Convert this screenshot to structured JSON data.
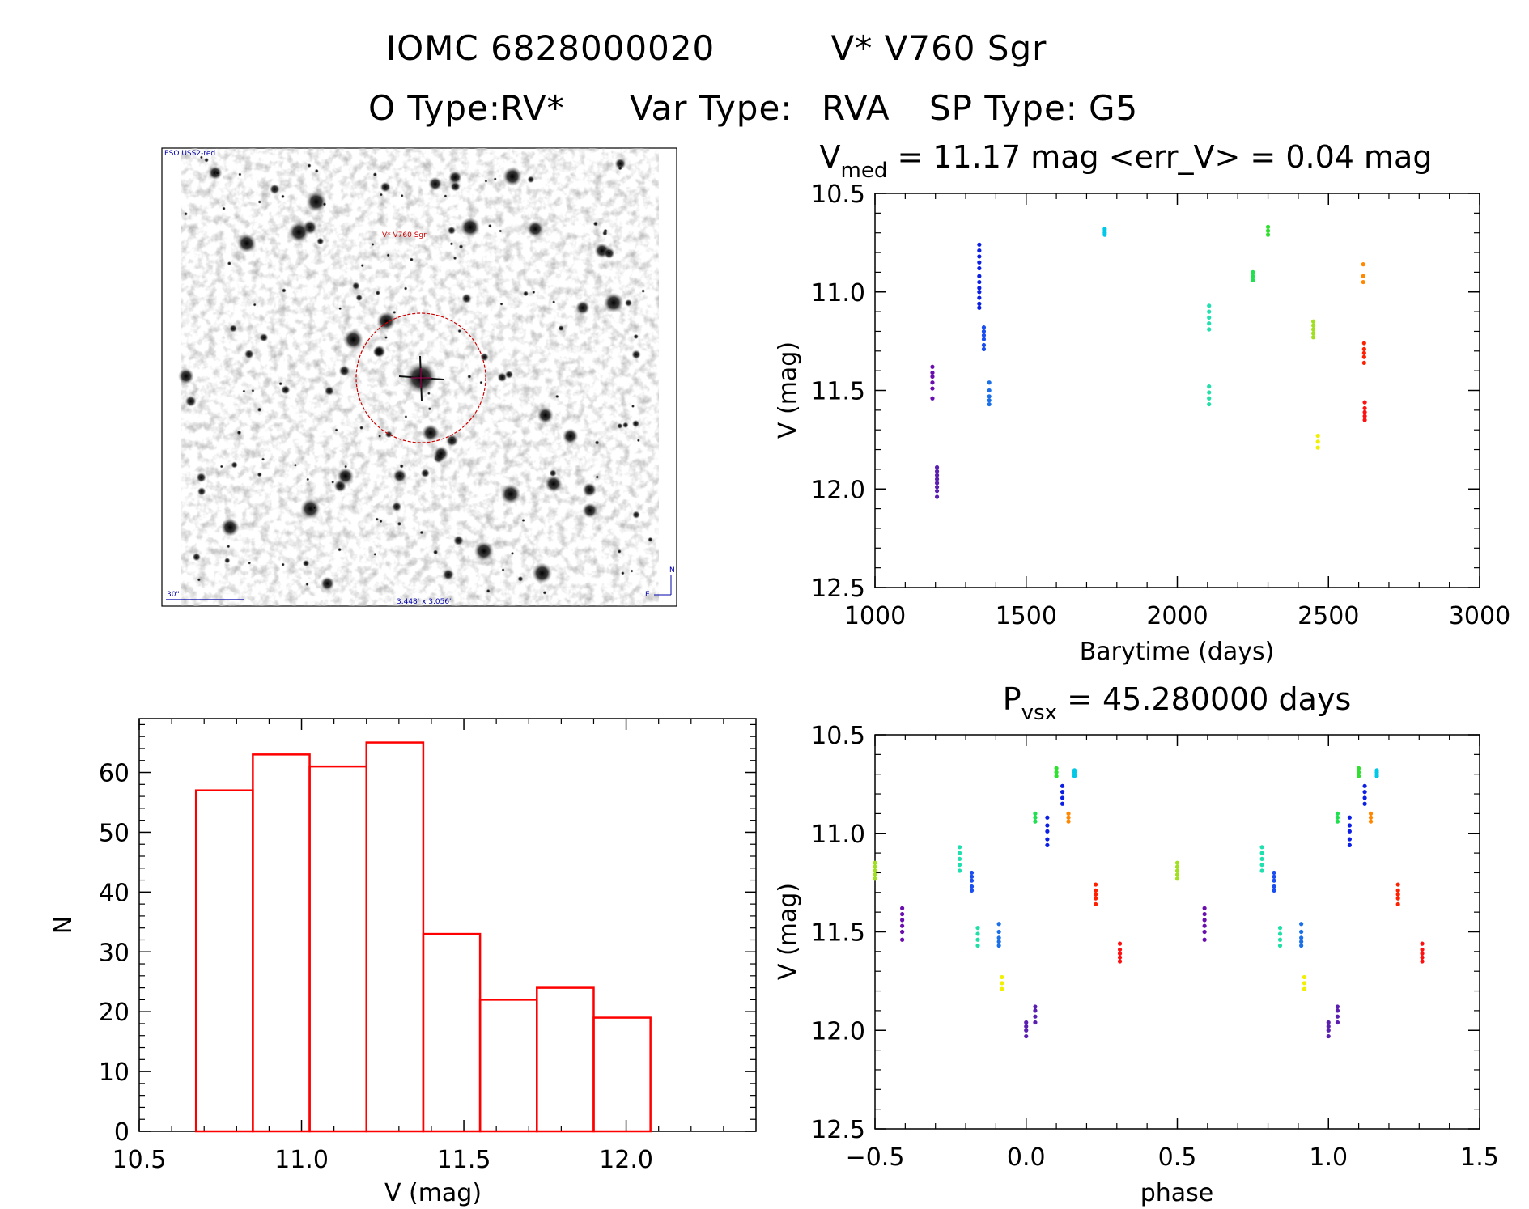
{
  "header": {
    "object_id": "IOMC 6828000020",
    "simbad_name": "V* V760 Sgr",
    "o_type_label": "O Type:",
    "o_type": "RV*",
    "var_type_label": "Var Type:",
    "var_type": "RVA",
    "sp_type_label": "SP Type:",
    "sp_type": "G5"
  },
  "finder_image": {
    "survey_label": "ESO USS2-red",
    "target_label": "V* V760 Sgr",
    "scale_label": "30\"",
    "fov_label": "3.448' x 3.056'",
    "north_label": "N",
    "east_label": "E"
  },
  "colors": {
    "hist_bar": "#ff0000",
    "target_circle": "#cc0000",
    "label_blue": "#0000aa",
    "label_red": "#cc0000"
  },
  "chart_data": [
    {
      "id": "lightcurve",
      "type": "scatter",
      "title_prefix": "V",
      "title_subscript": "med",
      "title_rest": " = 11.17 mag <err_V> = 0.04 mag",
      "xlabel": "Barytime (days)",
      "ylabel": "V (mag)",
      "xlim": [
        1000,
        3000
      ],
      "ylim": [
        12.5,
        10.5
      ],
      "y_inverted": true,
      "xticks": [
        1000,
        1500,
        2000,
        2500,
        3000
      ],
      "xtick_labels": [
        "1000",
        "1500",
        "2000",
        "2500",
        "3000"
      ],
      "yticks": [
        10.5,
        11.0,
        11.5,
        12.0,
        12.5
      ],
      "ytick_labels": [
        "10.5",
        "11.0",
        "11.5",
        "12.0",
        "12.5"
      ],
      "groups": [
        {
          "name": "seg1",
          "color": "#6a0dad",
          "x": 1190,
          "y": [
            11.38,
            11.41,
            11.43,
            11.46,
            11.49,
            11.54
          ]
        },
        {
          "name": "seg2",
          "color": "#5a1eb0",
          "x": 1205,
          "y": [
            11.89,
            11.91,
            11.93,
            11.95,
            11.97,
            11.99,
            12.01,
            12.04
          ]
        },
        {
          "name": "seg3",
          "color": "#0a1ee6",
          "x": 1345,
          "y": [
            10.76,
            10.79,
            10.82,
            10.85,
            10.88,
            10.92,
            10.95,
            10.98,
            11.0,
            11.03,
            11.06,
            11.08
          ]
        },
        {
          "name": "seg4",
          "color": "#1a4ef0",
          "x": 1360,
          "y": [
            11.18,
            11.2,
            11.22,
            11.24,
            11.27,
            11.29
          ]
        },
        {
          "name": "seg5",
          "color": "#1a70e8",
          "x": 1378,
          "y": [
            11.46,
            11.5,
            11.53,
            11.55,
            11.57
          ]
        },
        {
          "name": "seg6",
          "color": "#00c8e6",
          "x": 1760,
          "y": [
            10.68,
            10.69,
            10.7,
            10.71
          ]
        },
        {
          "name": "seg7",
          "color": "#20e0b0",
          "x": 2105,
          "y": [
            11.07,
            11.1,
            11.13,
            11.16,
            11.19
          ]
        },
        {
          "name": "seg8",
          "color": "#20e0a8",
          "x": 2105,
          "y": [
            11.48,
            11.51,
            11.54,
            11.57
          ]
        },
        {
          "name": "seg9",
          "color": "#20e050",
          "x": 2250,
          "y": [
            10.9,
            10.92,
            10.94
          ]
        },
        {
          "name": "seg10",
          "color": "#30e030",
          "x": 2300,
          "y": [
            10.67,
            10.69,
            10.71
          ]
        },
        {
          "name": "seg11",
          "color": "#a0e020",
          "x": 2450,
          "y": [
            11.15,
            11.17,
            11.19,
            11.21,
            11.23
          ]
        },
        {
          "name": "seg12",
          "color": "#f0f000",
          "x": 2465,
          "y": [
            11.73,
            11.76,
            11.79
          ]
        },
        {
          "name": "seg13",
          "color": "#ff8800",
          "x": 2615,
          "y": [
            10.86,
            10.92,
            10.95
          ]
        },
        {
          "name": "seg14",
          "color": "#ff2000",
          "x": 2618,
          "y": [
            11.26,
            11.29,
            11.31,
            11.33,
            11.36
          ]
        },
        {
          "name": "seg15",
          "color": "#ff1010",
          "x": 2620,
          "y": [
            11.56,
            11.59,
            11.61,
            11.63,
            11.65
          ]
        }
      ]
    },
    {
      "id": "histogram",
      "type": "bar",
      "title": "",
      "xlabel": "V (mag)",
      "ylabel": "N",
      "xlim": [
        10.5,
        12.4
      ],
      "ylim": [
        0,
        69
      ],
      "xticks": [
        10.5,
        11.0,
        11.5,
        12.0
      ],
      "xtick_labels": [
        "10.5",
        "11.0",
        "11.5",
        "12.0"
      ],
      "yticks": [
        0,
        10,
        20,
        30,
        40,
        50,
        60
      ],
      "ytick_labels": [
        "0",
        "10",
        "20",
        "30",
        "40",
        "50",
        "60"
      ],
      "bin_edges": [
        10.675,
        10.85,
        11.025,
        11.2,
        11.375,
        11.55,
        11.725,
        11.9,
        12.075
      ],
      "values": [
        57,
        63,
        61,
        65,
        33,
        22,
        24,
        19
      ]
    },
    {
      "id": "phased",
      "type": "scatter",
      "title_prefix": "P",
      "title_subscript": "vsx",
      "title_rest": " = 45.280000 days",
      "xlabel": "phase",
      "ylabel": "V (mag)",
      "xlim": [
        -0.5,
        1.5
      ],
      "ylim": [
        12.5,
        10.5
      ],
      "y_inverted": true,
      "xticks": [
        -0.5,
        0.0,
        0.5,
        1.0,
        1.5
      ],
      "xtick_labels": [
        "−0.5",
        "0.0",
        "0.5",
        "1.0",
        "1.5"
      ],
      "yticks": [
        10.5,
        11.0,
        11.5,
        12.0,
        12.5
      ],
      "ytick_labels": [
        "10.5",
        "11.0",
        "11.5",
        "12.0",
        "12.5"
      ],
      "groups": [
        {
          "name": "p1",
          "color": "#6a0dad",
          "x": -0.41,
          "y": [
            11.38,
            11.41,
            11.44,
            11.47,
            11.5,
            11.54
          ]
        },
        {
          "name": "p2",
          "color": "#5a1eb0",
          "x": 0.0,
          "y": [
            11.96,
            11.98,
            12.0,
            12.03
          ]
        },
        {
          "name": "p3",
          "color": "#5a1eb0",
          "x": 0.03,
          "y": [
            11.88,
            11.9,
            11.93,
            11.96
          ]
        },
        {
          "name": "p4",
          "color": "#0a1ee6",
          "x": 0.07,
          "y": [
            10.92,
            10.96,
            10.99,
            11.03,
            11.06
          ]
        },
        {
          "name": "p5",
          "color": "#0a1ee6",
          "x": 0.12,
          "y": [
            10.76,
            10.79,
            10.82,
            10.85
          ]
        },
        {
          "name": "p6",
          "color": "#1a4ef0",
          "x": -0.18,
          "y": [
            11.2,
            11.22,
            11.24,
            11.27,
            11.29
          ]
        },
        {
          "name": "p7",
          "color": "#1a70e8",
          "x": -0.09,
          "y": [
            11.46,
            11.5,
            11.53,
            11.55,
            11.57
          ]
        },
        {
          "name": "p8",
          "color": "#00c8e6",
          "x": 0.16,
          "y": [
            10.68,
            10.69,
            10.7,
            10.71
          ]
        },
        {
          "name": "p9",
          "color": "#20e0b0",
          "x": -0.22,
          "y": [
            11.07,
            11.1,
            11.13,
            11.16,
            11.19
          ]
        },
        {
          "name": "p10",
          "color": "#20e0a8",
          "x": -0.16,
          "y": [
            11.48,
            11.51,
            11.54,
            11.57
          ]
        },
        {
          "name": "p11",
          "color": "#20e050",
          "x": 0.03,
          "y": [
            10.9,
            10.92,
            10.94
          ]
        },
        {
          "name": "p12",
          "color": "#30e030",
          "x": 0.1,
          "y": [
            10.67,
            10.69,
            10.71
          ]
        },
        {
          "name": "p13",
          "color": "#a0e020",
          "x": 0.5,
          "y": [
            11.15,
            11.17,
            11.19,
            11.21,
            11.23
          ]
        },
        {
          "name": "p13b",
          "color": "#a0e020",
          "x": -0.5,
          "y": [
            11.15,
            11.17,
            11.19,
            11.21,
            11.23
          ]
        },
        {
          "name": "p14",
          "color": "#f0f000",
          "x": -0.08,
          "y": [
            11.73,
            11.76,
            11.79
          ]
        },
        {
          "name": "p15",
          "color": "#ff8800",
          "x": 0.14,
          "y": [
            10.9,
            10.92,
            10.94
          ]
        },
        {
          "name": "p16",
          "color": "#ff2000",
          "x": 0.23,
          "y": [
            11.26,
            11.29,
            11.31,
            11.33,
            11.36
          ]
        },
        {
          "name": "p17",
          "color": "#ff1010",
          "x": 0.31,
          "y": [
            11.56,
            11.59,
            11.61,
            11.63,
            11.65
          ]
        },
        {
          "name": "q1",
          "color": "#6a0dad",
          "x": 0.59,
          "y": [
            11.38,
            11.41,
            11.44,
            11.47,
            11.5,
            11.54
          ]
        },
        {
          "name": "q2",
          "color": "#5a1eb0",
          "x": 1.0,
          "y": [
            11.96,
            11.98,
            12.0,
            12.03
          ]
        },
        {
          "name": "q3",
          "color": "#5a1eb0",
          "x": 1.03,
          "y": [
            11.88,
            11.9,
            11.93,
            11.96
          ]
        },
        {
          "name": "q4",
          "color": "#0a1ee6",
          "x": 1.07,
          "y": [
            10.92,
            10.96,
            10.99,
            11.03,
            11.06
          ]
        },
        {
          "name": "q5",
          "color": "#0a1ee6",
          "x": 1.12,
          "y": [
            10.76,
            10.79,
            10.82,
            10.85
          ]
        },
        {
          "name": "q6",
          "color": "#1a4ef0",
          "x": 0.82,
          "y": [
            11.2,
            11.22,
            11.24,
            11.27,
            11.29
          ]
        },
        {
          "name": "q7",
          "color": "#1a70e8",
          "x": 0.91,
          "y": [
            11.46,
            11.5,
            11.53,
            11.55,
            11.57
          ]
        },
        {
          "name": "q8",
          "color": "#00c8e6",
          "x": 1.16,
          "y": [
            10.68,
            10.69,
            10.7,
            10.71
          ]
        },
        {
          "name": "q9",
          "color": "#20e0b0",
          "x": 0.78,
          "y": [
            11.07,
            11.1,
            11.13,
            11.16,
            11.19
          ]
        },
        {
          "name": "q10",
          "color": "#20e0a8",
          "x": 0.84,
          "y": [
            11.48,
            11.51,
            11.54,
            11.57
          ]
        },
        {
          "name": "q11",
          "color": "#20e050",
          "x": 1.03,
          "y": [
            10.9,
            10.92,
            10.94
          ]
        },
        {
          "name": "q12",
          "color": "#30e030",
          "x": 1.1,
          "y": [
            10.67,
            10.69,
            10.71
          ]
        },
        {
          "name": "q14",
          "color": "#f0f000",
          "x": 0.92,
          "y": [
            11.73,
            11.76,
            11.79
          ]
        },
        {
          "name": "q15",
          "color": "#ff8800",
          "x": 1.14,
          "y": [
            10.9,
            10.92,
            10.94
          ]
        },
        {
          "name": "q16",
          "color": "#ff2000",
          "x": 1.23,
          "y": [
            11.26,
            11.29,
            11.31,
            11.33,
            11.36
          ]
        },
        {
          "name": "q17",
          "color": "#ff1010",
          "x": 1.31,
          "y": [
            11.56,
            11.59,
            11.61,
            11.63,
            11.65
          ]
        }
      ]
    }
  ]
}
